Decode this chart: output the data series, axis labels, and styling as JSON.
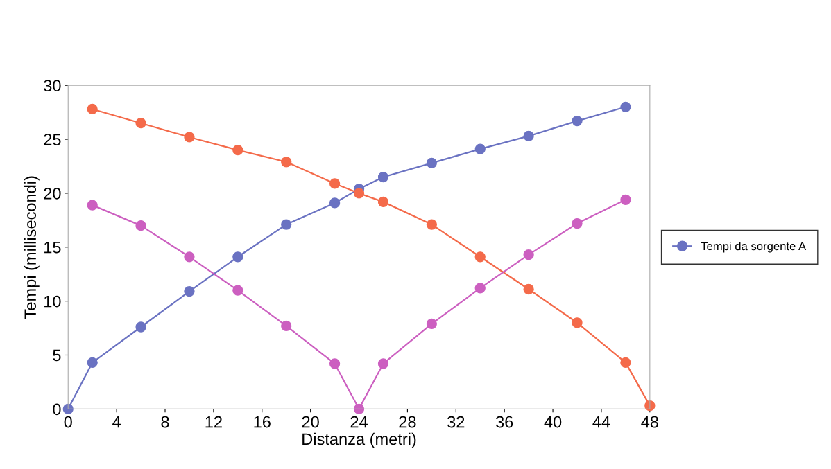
{
  "chart_data": {
    "type": "line",
    "ylabel": "Tempi (millisecondi)",
    "xlabel": "Distanza (metri)",
    "xlim": [
      0,
      48
    ],
    "xticks": [
      0,
      4,
      8,
      12,
      16,
      20,
      24,
      28,
      32,
      36,
      40,
      44,
      48
    ],
    "ylim": [
      0,
      30
    ],
    "yticks": [
      0,
      5,
      10,
      15,
      20,
      25,
      30
    ],
    "marker": "circle",
    "grid": false,
    "legend": "right",
    "series": [
      {
        "name": "Tempi da sorgente A",
        "color": "#6a72c2",
        "x": [
          0,
          2,
          6,
          10,
          14,
          18,
          22,
          24,
          26,
          30,
          34,
          38,
          42,
          46
        ],
        "values": [
          0,
          4.3,
          7.6,
          10.9,
          14.1,
          17.1,
          19.1,
          20.4,
          21.5,
          22.8,
          24.1,
          25.3,
          26.7,
          28.0
        ]
      },
      {
        "color": "#f46a4a",
        "x": [
          2,
          6,
          10,
          14,
          18,
          22,
          24,
          26,
          30,
          34,
          38,
          42,
          46,
          48
        ],
        "values": [
          27.8,
          26.5,
          25.2,
          24.0,
          22.9,
          20.9,
          20.0,
          19.2,
          17.1,
          14.1,
          11.1,
          8.0,
          4.3,
          0.3
        ]
      },
      {
        "color": "#cc5fc0",
        "x": [
          2,
          6,
          10,
          14,
          18,
          22,
          24,
          26,
          30,
          34,
          38,
          42,
          46
        ],
        "values": [
          18.9,
          17.0,
          14.1,
          11.0,
          7.7,
          4.2,
          0,
          4.2,
          7.9,
          11.2,
          14.3,
          17.2,
          19.4
        ]
      }
    ]
  }
}
